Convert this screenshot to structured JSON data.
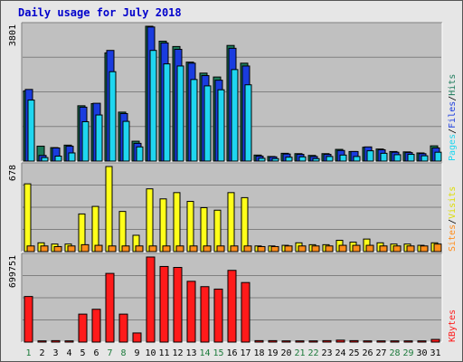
{
  "chart_data": {
    "type": "bar",
    "title": "Daily usage for July 2018",
    "categories": [
      "1",
      "2",
      "3",
      "4",
      "5",
      "6",
      "7",
      "8",
      "9",
      "10",
      "11",
      "12",
      "13",
      "14",
      "15",
      "16",
      "17",
      "18",
      "19",
      "20",
      "21",
      "22",
      "23",
      "24",
      "25",
      "26",
      "27",
      "28",
      "29",
      "30",
      "31"
    ],
    "weekend_days": [
      "1",
      "7",
      "8",
      "14",
      "15",
      "21",
      "22",
      "28",
      "29"
    ],
    "panels": [
      {
        "name": "hits-files-pages",
        "ymax_label": "3801",
        "ylim": [
          0,
          3801
        ],
        "legend_labels": [
          "Pages",
          "/",
          "Files",
          "/",
          "Hits"
        ],
        "series": [
          {
            "name": "Hits",
            "color": "#1b7a5a",
            "values": [
              1980,
              420,
              380,
              450,
              1560,
              1620,
              3050,
              1380,
              560,
              3801,
              3380,
              3230,
              2790,
              2480,
              2370,
              3260,
              2760,
              170,
              130,
              220,
              210,
              160,
              210,
              330,
              270,
              390,
              340,
              270,
              260,
              230,
              430
            ]
          },
          {
            "name": "Files",
            "color": "#1a3cdf",
            "values": [
              2020,
              160,
              370,
              420,
              1520,
              1630,
              3120,
              1340,
              500,
              3780,
              3330,
              3150,
              2760,
              2410,
              2280,
              3180,
              2680,
              140,
              120,
              200,
              190,
              130,
              190,
              300,
              270,
              400,
              320,
              250,
              240,
              210,
              370
            ]
          },
          {
            "name": "Pages",
            "color": "#1fd6f0",
            "values": [
              1720,
              100,
              140,
              230,
              1110,
              1300,
              2520,
              1120,
              400,
              3120,
              2740,
              2680,
              2300,
              2120,
              2010,
              2580,
              2150,
              80,
              70,
              110,
              120,
              70,
              130,
              170,
              130,
              290,
              220,
              180,
              190,
              150,
              250
            ]
          }
        ]
      },
      {
        "name": "visits-sites",
        "ymax_label": "678",
        "ylim": [
          0,
          678
        ],
        "legend_labels": [
          "Sites",
          "/",
          "Visits"
        ],
        "series": [
          {
            "name": "Visits",
            "color": "#ffff1a",
            "values": [
              540,
              70,
              60,
              60,
              300,
              360,
              678,
              320,
              130,
              500,
              420,
              470,
              400,
              350,
              330,
              470,
              430,
              45,
              45,
              50,
              70,
              55,
              55,
              90,
              75,
              100,
              70,
              60,
              60,
              50,
              70
            ]
          },
          {
            "name": "Sites",
            "color": "#ff8c1a",
            "values": [
              45,
              45,
              40,
              45,
              55,
              50,
              45,
              45,
              45,
              45,
              45,
              45,
              45,
              45,
              45,
              45,
              45,
              40,
              40,
              45,
              45,
              45,
              45,
              50,
              50,
              50,
              45,
              45,
              45,
              45,
              60
            ]
          }
        ]
      },
      {
        "name": "kbytes",
        "ymax_label": "699751",
        "ylim": [
          0,
          699751
        ],
        "legend_labels": [
          "KBytes"
        ],
        "series": [
          {
            "name": "KBytes",
            "color": "#ff1a1a",
            "values": [
              375000,
              10000,
              12000,
              10000,
              230000,
              270000,
              565000,
              230000,
              75000,
              699751,
              622000,
              614000,
              500000,
              456000,
              436000,
              590000,
              490000,
              12000,
              12000,
              10000,
              10000,
              10000,
              12000,
              16000,
              12000,
              10000,
              10000,
              10000,
              10000,
              10000,
              22000
            ]
          }
        ]
      }
    ]
  }
}
